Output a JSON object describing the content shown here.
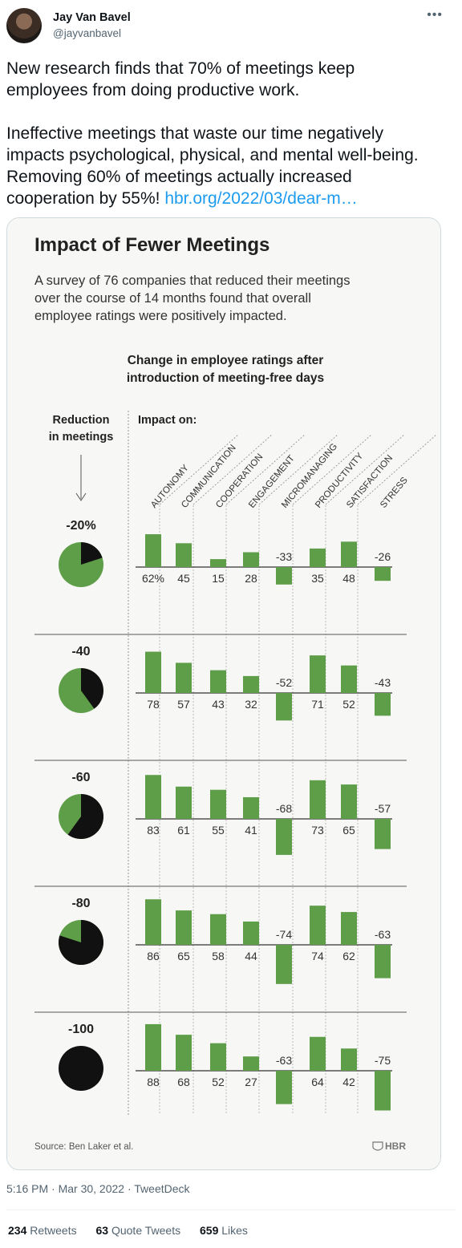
{
  "user": {
    "name": "Jay Van Bavel",
    "handle": "@jayvanbavel"
  },
  "more_icon": "more-icon",
  "tweet": {
    "paragraph1": "New research finds that 70% of meetings keep employees from doing productive work.",
    "paragraph2": "Ineffective meetings that waste our time negatively impacts psychological, physical, and mental well-being. Removing 60% of meetings actually increased cooperation by 55%!",
    "link": "hbr.org/2022/03/dear-m…"
  },
  "meta": {
    "timestamp": "5:16 PM · Mar 30, 2022 · TweetDeck"
  },
  "stats": {
    "retweets_count": "234",
    "retweets_label": "Retweets",
    "quotes_count": "63",
    "quotes_label": "Quote Tweets",
    "likes_count": "659",
    "likes_label": "Likes"
  },
  "chart_data": {
    "type": "bar",
    "title": "Impact of Fewer Meetings",
    "subtitle_lines": [
      "A survey of 76 companies that reduced their meetings",
      "over the course of 14 months found that overall",
      "employee ratings were positively impacted."
    ],
    "chart_heading_lines": [
      "Change in employee ratings after",
      "introduction of meeting-free days"
    ],
    "left_header_lines": [
      "Reduction",
      "in meetings"
    ],
    "impact_label": "Impact on:",
    "categories": [
      "AUTONOMY",
      "COMMUNICATION",
      "COOPERATION",
      "ENGAGEMENT",
      "MICROMANAGING",
      "PRODUCTIVITY",
      "SATISFACTION",
      "STRESS"
    ],
    "series": [
      {
        "name": "-20%",
        "reduction": 20,
        "values": [
          62,
          45,
          15,
          28,
          -33,
          35,
          48,
          -26
        ],
        "labels": [
          "62%",
          "45",
          "15",
          "28",
          "-33",
          "35",
          "48",
          "-26"
        ]
      },
      {
        "name": "-40",
        "reduction": 40,
        "values": [
          78,
          57,
          43,
          32,
          -52,
          71,
          52,
          -43
        ],
        "labels": [
          "78",
          "57",
          "43",
          "32",
          "-52",
          "71",
          "52",
          "-43"
        ]
      },
      {
        "name": "-60",
        "reduction": 60,
        "values": [
          83,
          61,
          55,
          41,
          -68,
          73,
          65,
          -57
        ],
        "labels": [
          "83",
          "61",
          "55",
          "41",
          "-68",
          "73",
          "65",
          "-57"
        ]
      },
      {
        "name": "-80",
        "reduction": 80,
        "values": [
          86,
          65,
          58,
          44,
          -74,
          74,
          62,
          -63
        ],
        "labels": [
          "86",
          "65",
          "58",
          "44",
          "-74",
          "74",
          "62",
          "-63"
        ]
      },
      {
        "name": "-100",
        "reduction": 100,
        "values": [
          88,
          68,
          52,
          27,
          -63,
          64,
          42,
          -75
        ],
        "labels": [
          "88",
          "68",
          "52",
          "27",
          "-63",
          "64",
          "42",
          "-75"
        ]
      }
    ],
    "source": "Source: Ben Laker et al.",
    "logo": "HBR",
    "colors": {
      "bar": "#5e9e48",
      "pie_fill": "#111111",
      "pie_base": "#5e9e48",
      "text": "#222222",
      "link": "#1d9bf0"
    }
  }
}
